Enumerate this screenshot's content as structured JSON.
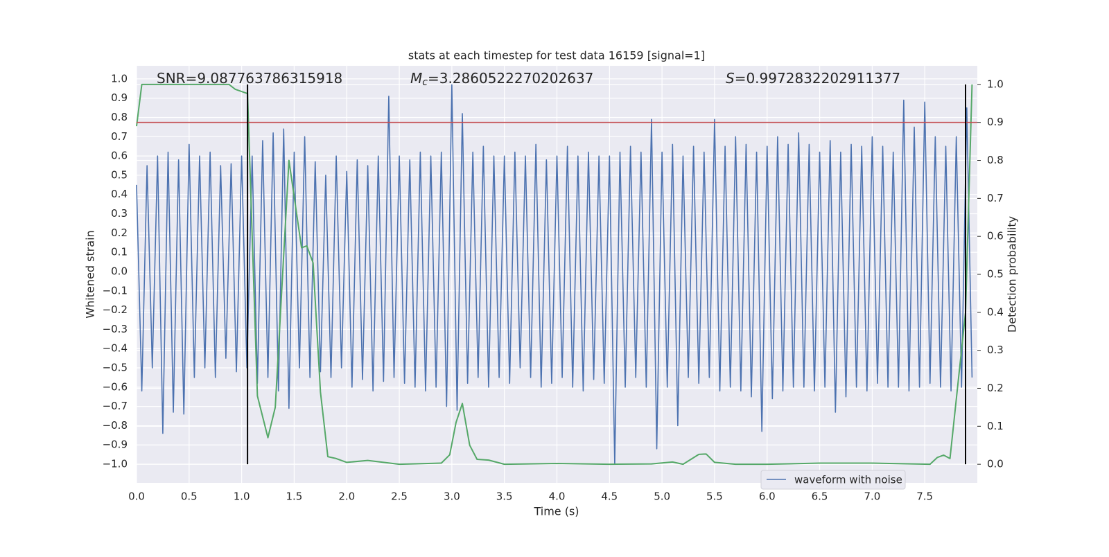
{
  "chart_data": {
    "type": "line",
    "title": "stats at each timestep for test data 16159 [signal=1]",
    "xlabel": "Time (s)",
    "ylabel": "Whitened strain",
    "y2label": "Detection probability",
    "annotations": [
      {
        "name": "SNR",
        "italic": false,
        "value": "=9.087763786315918"
      },
      {
        "name": "M",
        "sub": "c",
        "italic": true,
        "value": "=3.2860522270202637"
      },
      {
        "name": "S",
        "italic": true,
        "value": "=0.9972832202911377"
      }
    ],
    "xlim": [
      0,
      8.0
    ],
    "ylim": [
      -1.097,
      1.068
    ],
    "y2lim": [
      -0.049,
      1.049
    ],
    "xticks": [
      {
        "value": 0,
        "label": "0.0"
      },
      {
        "value": 0.5,
        "label": "0.5"
      },
      {
        "value": 1,
        "label": "1.0"
      },
      {
        "value": 1.5,
        "label": "1.5"
      },
      {
        "value": 2,
        "label": "2.0"
      },
      {
        "value": 2.5,
        "label": "2.5"
      },
      {
        "value": 3,
        "label": "3.0"
      },
      {
        "value": 3.5,
        "label": "3.5"
      },
      {
        "value": 4,
        "label": "4.0"
      },
      {
        "value": 4.5,
        "label": "4.5"
      },
      {
        "value": 5,
        "label": "5.0"
      },
      {
        "value": 5.5,
        "label": "5.5"
      },
      {
        "value": 6,
        "label": "6.0"
      },
      {
        "value": 6.5,
        "label": "6.5"
      },
      {
        "value": 7,
        "label": "7.0"
      },
      {
        "value": 7.5,
        "label": "7.5"
      }
    ],
    "yticks": [
      {
        "value": -1,
        "label": "−1.0"
      },
      {
        "value": -0.9,
        "label": "−0.9"
      },
      {
        "value": -0.8,
        "label": "−0.8"
      },
      {
        "value": -0.7,
        "label": "−0.7"
      },
      {
        "value": -0.6,
        "label": "−0.6"
      },
      {
        "value": -0.5,
        "label": "−0.5"
      },
      {
        "value": -0.4,
        "label": "−0.4"
      },
      {
        "value": -0.3,
        "label": "−0.3"
      },
      {
        "value": -0.2,
        "label": "−0.2"
      },
      {
        "value": -0.1,
        "label": "−0.1"
      },
      {
        "value": 0,
        "label": "0.0"
      },
      {
        "value": 0.1,
        "label": "0.1"
      },
      {
        "value": 0.2,
        "label": "0.2"
      },
      {
        "value": 0.3,
        "label": "0.3"
      },
      {
        "value": 0.4,
        "label": "0.4"
      },
      {
        "value": 0.5,
        "label": "0.5"
      },
      {
        "value": 0.6,
        "label": "0.6"
      },
      {
        "value": 0.7,
        "label": "0.7"
      },
      {
        "value": 0.8,
        "label": "0.8"
      },
      {
        "value": 0.9,
        "label": "0.9"
      },
      {
        "value": 1,
        "label": "1.0"
      }
    ],
    "y2ticks": [
      {
        "value": 0,
        "label": "0.0"
      },
      {
        "value": 0.1,
        "label": "0.1"
      },
      {
        "value": 0.2,
        "label": "0.2"
      },
      {
        "value": 0.3,
        "label": "0.3"
      },
      {
        "value": 0.4,
        "label": "0.4"
      },
      {
        "value": 0.5,
        "label": "0.5"
      },
      {
        "value": 0.6,
        "label": "0.6"
      },
      {
        "value": 0.7,
        "label": "0.7"
      },
      {
        "value": 0.8,
        "label": "0.8"
      },
      {
        "value": 0.9,
        "label": "0.9"
      },
      {
        "value": 1,
        "label": "1.0"
      }
    ],
    "grid": true,
    "legend": "lower right",
    "series": [
      {
        "name": "waveform with noise",
        "color": "#4c72b0",
        "axis": "y",
        "x": [
          0,
          0.05,
          0.1,
          0.15,
          0.2,
          0.25,
          0.3,
          0.35,
          0.4,
          0.45,
          0.5,
          0.55,
          0.6,
          0.65,
          0.7,
          0.75,
          0.8,
          0.85,
          0.9,
          0.95,
          1,
          1.05,
          1.1,
          1.15,
          1.2,
          1.25,
          1.3,
          1.35,
          1.4,
          1.45,
          1.5,
          1.55,
          1.6,
          1.65,
          1.7,
          1.75,
          1.8,
          1.85,
          1.9,
          1.95,
          2,
          2.05,
          2.1,
          2.15,
          2.2,
          2.25,
          2.3,
          2.35,
          2.4,
          2.45,
          2.5,
          2.55,
          2.6,
          2.65,
          2.7,
          2.75,
          2.8,
          2.85,
          2.9,
          2.95,
          3,
          3.05,
          3.1,
          3.15,
          3.2,
          3.25,
          3.3,
          3.35,
          3.4,
          3.45,
          3.5,
          3.55,
          3.6,
          3.65,
          3.7,
          3.75,
          3.8,
          3.85,
          3.9,
          3.95,
          4,
          4.05,
          4.1,
          4.15,
          4.2,
          4.25,
          4.3,
          4.35,
          4.4,
          4.45,
          4.5,
          4.55,
          4.6,
          4.65,
          4.7,
          4.75,
          4.8,
          4.85,
          4.9,
          4.95,
          5,
          5.05,
          5.1,
          5.15,
          5.2,
          5.25,
          5.3,
          5.35,
          5.4,
          5.45,
          5.5,
          5.55,
          5.6,
          5.65,
          5.7,
          5.75,
          5.8,
          5.85,
          5.9,
          5.95,
          6,
          6.05,
          6.1,
          6.15,
          6.2,
          6.25,
          6.3,
          6.35,
          6.4,
          6.45,
          6.5,
          6.55,
          6.6,
          6.65,
          6.7,
          6.75,
          6.8,
          6.85,
          6.9,
          6.95,
          7,
          7.05,
          7.1,
          7.15,
          7.2,
          7.25,
          7.3,
          7.35,
          7.4,
          7.45,
          7.5,
          7.55,
          7.6,
          7.65,
          7.7,
          7.75,
          7.8,
          7.85,
          7.9,
          7.95
        ],
        "values": [
          0.45,
          -0.62,
          0.55,
          -0.5,
          0.6,
          -0.84,
          0.62,
          -0.73,
          0.58,
          -0.74,
          0.66,
          -0.55,
          0.6,
          -0.5,
          0.62,
          -0.55,
          0.55,
          -0.45,
          0.56,
          -0.52,
          0.6,
          -0.5,
          0.6,
          -0.58,
          0.68,
          -0.55,
          0.72,
          -0.62,
          0.74,
          -0.71,
          0.62,
          -0.5,
          0.7,
          -0.55,
          0.57,
          -0.52,
          0.5,
          -0.55,
          0.6,
          -0.5,
          0.52,
          -0.6,
          0.58,
          -0.56,
          0.55,
          -0.62,
          0.6,
          -0.57,
          0.91,
          -0.55,
          0.6,
          -0.58,
          0.58,
          -0.6,
          0.62,
          -0.62,
          0.6,
          -0.6,
          0.62,
          -0.7,
          0.97,
          -0.72,
          0.82,
          -0.58,
          0.62,
          -0.55,
          0.65,
          -0.6,
          0.6,
          -0.55,
          0.6,
          -0.58,
          0.62,
          -0.5,
          0.6,
          -0.55,
          0.66,
          -0.6,
          0.58,
          -0.58,
          0.6,
          -0.55,
          0.65,
          -0.6,
          0.6,
          -0.62,
          0.62,
          -0.56,
          0.6,
          -0.58,
          0.6,
          -1.0,
          0.62,
          -0.6,
          0.65,
          -0.55,
          0.62,
          -0.6,
          0.79,
          -0.92,
          0.62,
          -0.6,
          0.66,
          -0.8,
          0.6,
          -0.55,
          0.65,
          -0.58,
          0.62,
          -0.55,
          0.79,
          -0.62,
          0.65,
          -0.6,
          0.7,
          -0.62,
          0.66,
          -0.65,
          0.62,
          -0.83,
          0.65,
          -0.66,
          0.7,
          -0.62,
          0.66,
          -0.6,
          0.72,
          -0.6,
          0.66,
          -0.62,
          0.62,
          -0.6,
          0.68,
          -0.73,
          0.62,
          -0.65,
          0.66,
          -0.6,
          0.65,
          -0.62,
          0.7,
          -0.58,
          0.65,
          -0.6,
          0.62,
          -0.6,
          0.89,
          -0.62,
          0.75,
          -0.6,
          0.88,
          -0.58,
          0.7,
          -0.6,
          0.65,
          -0.62,
          0.7,
          -0.6,
          0.85,
          -0.55
        ]
      },
      {
        "color": "#55a868",
        "axis": "y2",
        "x": [
          0,
          0.05,
          0.88,
          0.94,
          1.056,
          1.15,
          1.25,
          1.32,
          1.45,
          1.57,
          1.62,
          1.68,
          1.75,
          1.82,
          1.9,
          2.0,
          2.2,
          2.5,
          2.9,
          2.98,
          3.04,
          3.1,
          3.17,
          3.24,
          3.35,
          3.5,
          4.0,
          4.5,
          4.9,
          5.1,
          5.2,
          5.35,
          5.42,
          5.5,
          5.7,
          6.0,
          6.5,
          7.0,
          7.55,
          7.62,
          7.68,
          7.74,
          7.888,
          7.95
        ],
        "values": [
          0.89,
          1.0,
          1.0,
          0.987,
          0.976,
          0.18,
          0.07,
          0.15,
          0.8,
          0.57,
          0.575,
          0.53,
          0.19,
          0.02,
          0.015,
          0.005,
          0.01,
          0.0,
          0.003,
          0.025,
          0.11,
          0.16,
          0.05,
          0.013,
          0.011,
          0.0,
          0.002,
          0.0,
          0.001,
          0.006,
          0.0,
          0.026,
          0.027,
          0.005,
          0.0,
          0.0,
          0.003,
          0.003,
          0.0,
          0.018,
          0.024,
          0.015,
          0.4,
          1.0
        ]
      }
    ],
    "threshold": {
      "value": 0.9,
      "color": "#c44e52"
    },
    "markers_x": [
      1.056,
      7.888
    ],
    "markers_color": "#000000"
  }
}
